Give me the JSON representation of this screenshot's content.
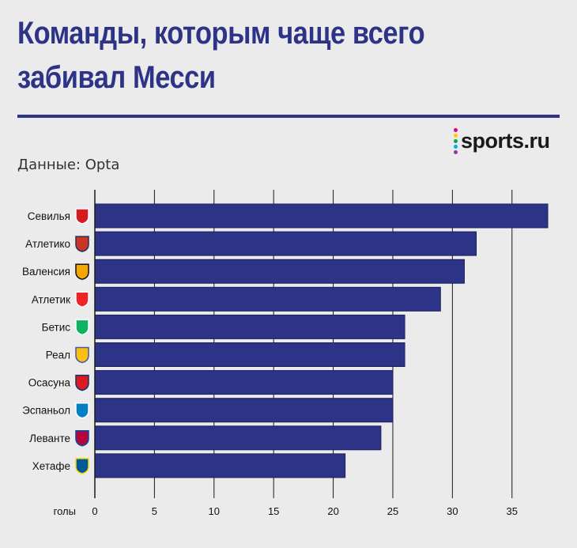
{
  "title": "Команды, которым чаще всего забивал Месси",
  "source": "Данные: Opta",
  "logo": {
    "text": "sports.ru",
    "dot_colors": [
      "#e5007d",
      "#ffcc00",
      "#00a651",
      "#00aeef",
      "#8c3a9b"
    ]
  },
  "colors": {
    "bar": "#2d3386",
    "bar_stroke": "#1a1f5c",
    "title": "#2d3386",
    "grid": "#1a1a1a"
  },
  "chart_data": {
    "type": "bar",
    "orientation": "horizontal",
    "categories": [
      "Севилья",
      "Атлетико",
      "Валенсия",
      "Атлетик",
      "Бетис",
      "Реал",
      "Осасуна",
      "Эспаньол",
      "Леванте",
      "Хетафе"
    ],
    "values": [
      38,
      32,
      31,
      29,
      26,
      26,
      25,
      25,
      24,
      21
    ],
    "xlabel": "голы",
    "xlim": [
      0,
      38
    ],
    "xticks": [
      0,
      5,
      10,
      15,
      20,
      25,
      30,
      35
    ],
    "grid": "vertical",
    "team_icons": [
      "sevilla-crest-icon",
      "atletico-crest-icon",
      "valencia-crest-icon",
      "athletic-crest-icon",
      "betis-crest-icon",
      "real-madrid-crest-icon",
      "osasuna-crest-icon",
      "espanyol-crest-icon",
      "levante-crest-icon",
      "getafe-crest-icon"
    ]
  }
}
